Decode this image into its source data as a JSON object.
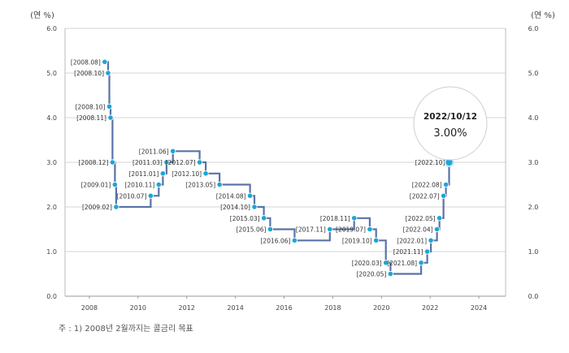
{
  "chart_data": {
    "type": "line",
    "y_unit_left": "(연 %)",
    "y_unit_right": "(연 %)",
    "y_range": [
      0,
      6
    ],
    "y_ticks": [
      "0.0",
      "1.0",
      "2.0",
      "3.0",
      "4.0",
      "5.0",
      "6.0"
    ],
    "x_range": [
      2007,
      2025.1
    ],
    "x_ticks": [
      "2008",
      "2010",
      "2012",
      "2014",
      "2016",
      "2018",
      "2020",
      "2022",
      "2024"
    ],
    "grid": "horizontal",
    "line_color": "#5a73a6",
    "marker_color": "#1ba7d6",
    "points": [
      {
        "date": "2008.08",
        "x": 2008.63,
        "y": 5.25,
        "label": "[2008.08]",
        "label_pos": "left"
      },
      {
        "date": "2008.10",
        "x": 2008.77,
        "y": 5.0,
        "label": "[2008.10]",
        "label_pos": "left"
      },
      {
        "date": "2008.10",
        "x": 2008.82,
        "y": 4.25,
        "label": "[2008.10]",
        "label_pos": "left"
      },
      {
        "date": "2008.11",
        "x": 2008.87,
        "y": 4.0,
        "label": "[2008.11]",
        "label_pos": "left"
      },
      {
        "date": "2008.12",
        "x": 2008.95,
        "y": 3.0,
        "label": "[2008.12]",
        "label_pos": "left"
      },
      {
        "date": "2009.01",
        "x": 2009.05,
        "y": 2.5,
        "label": "[2009.01]",
        "label_pos": "left"
      },
      {
        "date": "2009.02",
        "x": 2009.1,
        "y": 2.0,
        "label": "[2009.02]",
        "label_pos": "left"
      },
      {
        "date": "2010.07",
        "x": 2010.52,
        "y": 2.25,
        "label": "[2010.07]",
        "label_pos": "left"
      },
      {
        "date": "2010.11",
        "x": 2010.85,
        "y": 2.5,
        "label": "[2010.11]",
        "label_pos": "left"
      },
      {
        "date": "2011.01",
        "x": 2011.02,
        "y": 2.75,
        "label": "[2011.01]",
        "label_pos": "left"
      },
      {
        "date": "2011.03",
        "x": 2011.17,
        "y": 3.0,
        "label": "[2011.03]",
        "label_pos": "left"
      },
      {
        "date": "2011.06",
        "x": 2011.43,
        "y": 3.25,
        "label": "[2011.06]",
        "label_pos": "left"
      },
      {
        "date": "2012.07",
        "x": 2012.53,
        "y": 3.0,
        "label": "[2012.07]",
        "label_pos": "left"
      },
      {
        "date": "2012.10",
        "x": 2012.78,
        "y": 2.75,
        "label": "[2012.10]",
        "label_pos": "left"
      },
      {
        "date": "2013.05",
        "x": 2013.35,
        "y": 2.5,
        "label": "[2013.05]",
        "label_pos": "left"
      },
      {
        "date": "2014.08",
        "x": 2014.6,
        "y": 2.25,
        "label": "[2014.08]",
        "label_pos": "left"
      },
      {
        "date": "2014.10",
        "x": 2014.78,
        "y": 2.0,
        "label": "[2014.10]",
        "label_pos": "left"
      },
      {
        "date": "2015.03",
        "x": 2015.17,
        "y": 1.75,
        "label": "[2015.03]",
        "label_pos": "left"
      },
      {
        "date": "2015.06",
        "x": 2015.43,
        "y": 1.5,
        "label": "[2015.06]",
        "label_pos": "left"
      },
      {
        "date": "2016.06",
        "x": 2016.43,
        "y": 1.25,
        "label": "[2016.06]",
        "label_pos": "left"
      },
      {
        "date": "2017.11",
        "x": 2017.88,
        "y": 1.5,
        "label": "[2017.11]",
        "label_pos": "left"
      },
      {
        "date": "2018.11",
        "x": 2018.88,
        "y": 1.75,
        "label": "[2018.11]",
        "label_pos": "left"
      },
      {
        "date": "2019.07",
        "x": 2019.52,
        "y": 1.5,
        "label": "[2019.07]",
        "label_pos": "left"
      },
      {
        "date": "2019.10",
        "x": 2019.78,
        "y": 1.25,
        "label": "[2019.10]",
        "label_pos": "left"
      },
      {
        "date": "2020.03",
        "x": 2020.18,
        "y": 0.75,
        "label": "[2020.03]",
        "label_pos": "left"
      },
      {
        "date": "2020.05",
        "x": 2020.37,
        "y": 0.5,
        "label": "[2020.05]",
        "label_pos": "left"
      },
      {
        "date": "2021.08",
        "x": 2021.63,
        "y": 0.75,
        "label": "[2021.08]",
        "label_pos": "left"
      },
      {
        "date": "2021.11",
        "x": 2021.88,
        "y": 1.0,
        "label": "[2021.11]",
        "label_pos": "left"
      },
      {
        "date": "2022.01",
        "x": 2022.03,
        "y": 1.25,
        "label": "[2022.01]",
        "label_pos": "left"
      },
      {
        "date": "2022.04",
        "x": 2022.28,
        "y": 1.5,
        "label": "[2022.04]",
        "label_pos": "left"
      },
      {
        "date": "2022.05",
        "x": 2022.38,
        "y": 1.75,
        "label": "[2022.05]",
        "label_pos": "left"
      },
      {
        "date": "2022.07",
        "x": 2022.55,
        "y": 2.25,
        "label": "[2022.07]",
        "label_pos": "left"
      },
      {
        "date": "2022.08",
        "x": 2022.65,
        "y": 2.5,
        "label": "[2022.08]",
        "label_pos": "left"
      },
      {
        "date": "2022.10",
        "x": 2022.78,
        "y": 3.0,
        "label": "[2022.10]",
        "label_pos": "left"
      }
    ],
    "highlight": {
      "date": "2022/10/12",
      "value": "3.00%"
    }
  },
  "footnote": "주 : 1) 2008년 2월까지는 콜금리 목표"
}
